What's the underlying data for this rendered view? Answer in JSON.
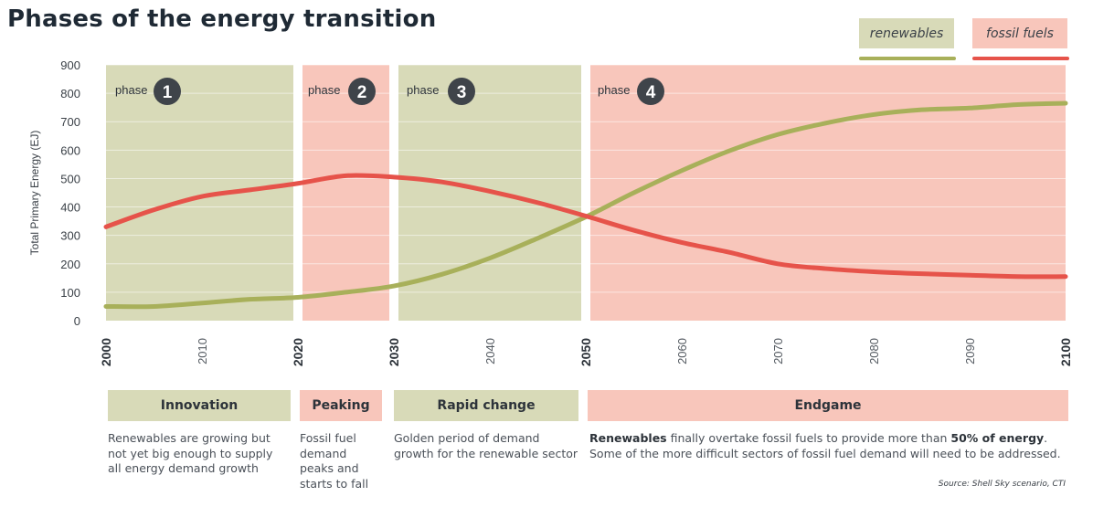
{
  "title": "Phases of the energy transition",
  "legend": {
    "renewables": "renewables",
    "fossil": "fossil fuels"
  },
  "colors": {
    "renewables": "#a8b05a",
    "fossil": "#e6534a",
    "phase_green": "#d8dab8",
    "phase_pink": "#f8c6bb",
    "badge": "#3f444a"
  },
  "phases": [
    {
      "label": "phase",
      "number": "1",
      "name": "Innovation",
      "color": "green",
      "from": 2000,
      "to": 2020
    },
    {
      "label": "phase",
      "number": "2",
      "name": "Peaking",
      "color": "pink",
      "from": 2020,
      "to": 2030
    },
    {
      "label": "phase",
      "number": "3",
      "name": "Rapid change",
      "color": "green",
      "from": 2030,
      "to": 2050
    },
    {
      "label": "phase",
      "number": "4",
      "name": "Endgame",
      "color": "pink",
      "from": 2050,
      "to": 2100
    }
  ],
  "descriptions": {
    "p1": "Renewables are growing but not yet big enough to supply all energy demand growth",
    "p2": "Fossil fuel demand peaks and starts to fall",
    "p3": "Golden period of demand growth for the renewable sector",
    "p4_bold1": "Renewables",
    "p4_text1": " finally overtake fossil fuels to provide more than ",
    "p4_bold2": "50% of energy",
    "p4_text2": ". Some of the more difficult sectors of fossil fuel demand will need to be addressed."
  },
  "source": "Source: Shell Sky scenario, CTI",
  "chart_data": {
    "type": "line",
    "title": "Phases of the energy transition",
    "ylabel": "Total Primary Energy (EJ)",
    "xlabel": "",
    "xlim": [
      2000,
      2100
    ],
    "ylim": [
      0,
      900
    ],
    "x_ticks": [
      2000,
      2010,
      2020,
      2030,
      2040,
      2050,
      2060,
      2070,
      2080,
      2090,
      2100
    ],
    "x_ticks_bold": [
      2000,
      2020,
      2030,
      2050,
      2100
    ],
    "y_ticks": [
      0,
      100,
      200,
      300,
      400,
      500,
      600,
      700,
      800,
      900
    ],
    "grid": "horizontal",
    "legend_position": "top-right",
    "series": [
      {
        "name": "renewables",
        "x": [
          2000,
          2005,
          2010,
          2015,
          2020,
          2025,
          2030,
          2035,
          2040,
          2045,
          2050,
          2055,
          2060,
          2065,
          2070,
          2075,
          2080,
          2085,
          2090,
          2095,
          2100
        ],
        "values": [
          50,
          50,
          62,
          75,
          82,
          100,
          122,
          163,
          220,
          290,
          365,
          450,
          528,
          598,
          655,
          695,
          725,
          742,
          748,
          760,
          765
        ]
      },
      {
        "name": "fossil fuels",
        "x": [
          2000,
          2005,
          2010,
          2015,
          2020,
          2025,
          2030,
          2035,
          2040,
          2045,
          2050,
          2055,
          2060,
          2065,
          2070,
          2075,
          2080,
          2085,
          2090,
          2095,
          2100
        ],
        "values": [
          330,
          390,
          437,
          460,
          483,
          510,
          505,
          488,
          455,
          415,
          368,
          318,
          275,
          240,
          200,
          183,
          172,
          165,
          160,
          155,
          155
        ]
      }
    ]
  }
}
